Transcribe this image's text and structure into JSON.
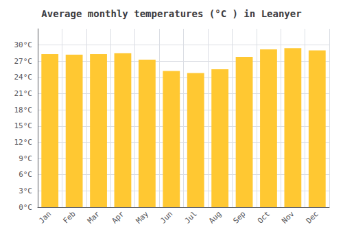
{
  "chart_data": {
    "type": "bar",
    "title": "Average monthly temperatures (°C ) in Leanyer",
    "categories": [
      "Jan",
      "Feb",
      "Mar",
      "Apr",
      "May",
      "Jun",
      "Jul",
      "Aug",
      "Sep",
      "Oct",
      "Nov",
      "Dec"
    ],
    "values": [
      28.3,
      28.2,
      28.3,
      28.5,
      27.3,
      25.2,
      24.8,
      25.5,
      27.8,
      29.2,
      29.4,
      29.0
    ],
    "color": "#FFC832",
    "ylim": [
      0,
      33
    ],
    "yticks": [
      {
        "value": 0,
        "label": "0°C"
      },
      {
        "value": 3,
        "label": "3°C"
      },
      {
        "value": 6,
        "label": "6°C"
      },
      {
        "value": 9,
        "label": "9°C"
      },
      {
        "value": 12,
        "label": "12°C"
      },
      {
        "value": 15,
        "label": "15°C"
      },
      {
        "value": 18,
        "label": "18°C"
      },
      {
        "value": 21,
        "label": "21°C"
      },
      {
        "value": 24,
        "label": "24°C"
      },
      {
        "value": 27,
        "label": "27°C"
      },
      {
        "value": 30,
        "label": "30°C"
      }
    ],
    "grid": true
  }
}
